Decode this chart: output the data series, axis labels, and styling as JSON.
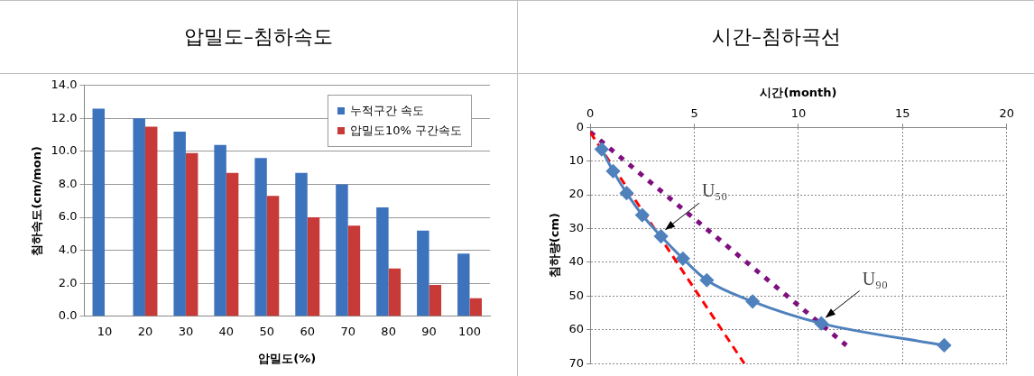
{
  "chart_data": [
    {
      "type": "bar",
      "title": "압밀도–침하속도",
      "xlabel": "압밀도(%)",
      "ylabel": "침하속도(cm/mon)",
      "categories": [
        "10",
        "20",
        "30",
        "40",
        "50",
        "60",
        "70",
        "80",
        "90",
        "100"
      ],
      "series": [
        {
          "name": "누적구간 속도",
          "color": "#3d73bd",
          "values": [
            12.6,
            12.0,
            11.2,
            10.4,
            9.6,
            8.7,
            8.0,
            6.6,
            5.2,
            3.8
          ]
        },
        {
          "name": "압밀도10% 구간속도",
          "color": "#c83a38",
          "values": [
            null,
            11.5,
            9.9,
            8.7,
            7.3,
            6.0,
            5.5,
            2.9,
            1.9,
            1.1
          ]
        }
      ],
      "ylim": [
        0,
        14
      ],
      "yticks": [
        {
          "value": 0,
          "label": "0.0"
        },
        {
          "value": 2,
          "label": "2.0"
        },
        {
          "value": 4,
          "label": "4.0"
        },
        {
          "value": 6,
          "label": "6.0"
        },
        {
          "value": 8,
          "label": "8.0"
        },
        {
          "value": 10,
          "label": "10.0"
        },
        {
          "value": 12,
          "label": "12.0"
        },
        {
          "value": 14,
          "label": "14.0"
        }
      ],
      "grid": "y",
      "legend": "top right"
    },
    {
      "type": "line",
      "title": "시간–침하곡선",
      "xlabel": "시간(month)",
      "ylabel": "침하량(cm)",
      "series": [
        {
          "color": "#4f81bd",
          "marker": "diamond",
          "line_style": "solid",
          "x": [
            0.55,
            1.1,
            1.75,
            2.5,
            3.4,
            4.45,
            5.6,
            7.8,
            11.1,
            17.0
          ],
          "values": [
            6.5,
            13,
            19.5,
            26,
            32.3,
            38.9,
            45.3,
            51.6,
            58.1,
            64.6
          ]
        },
        {
          "color": "#ff0000",
          "marker": "none",
          "line_style": "dashed",
          "x": [
            0,
            7.4
          ],
          "values": [
            1.5,
            70
          ]
        },
        {
          "color": "#7f0f7f",
          "marker": "none",
          "line_style": "dotted",
          "x": [
            0,
            12.3
          ],
          "values": [
            1.4,
            64.6
          ]
        }
      ],
      "xlim": [
        0,
        20
      ],
      "xticks": [
        0,
        5,
        10,
        15,
        20
      ],
      "ylim": [
        70,
        0
      ],
      "yticks": [
        0,
        10,
        20,
        30,
        40,
        50,
        60,
        70
      ],
      "grid": true,
      "annotations": [
        {
          "text": "U₅₀",
          "x": 3.5,
          "y": 31
        },
        {
          "text": "U₉₀",
          "x": 11.2,
          "y": 57
        }
      ]
    }
  ]
}
